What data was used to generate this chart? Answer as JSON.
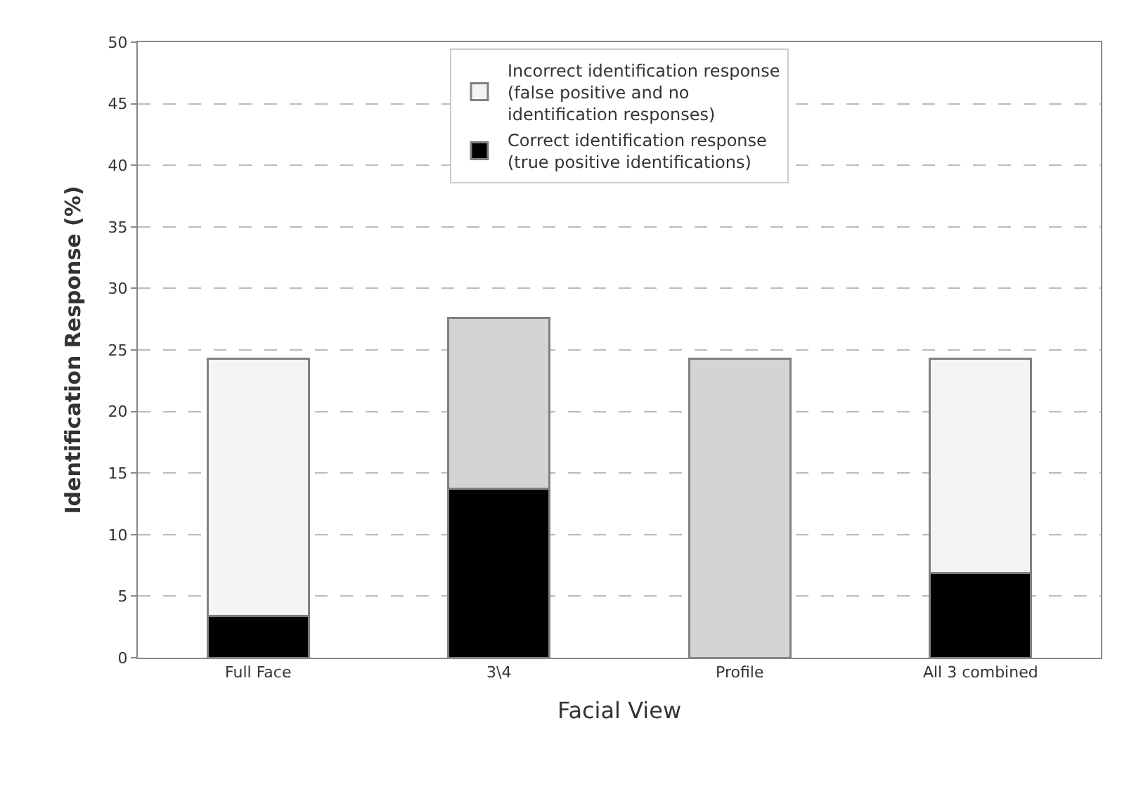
{
  "chart_data": {
    "type": "bar",
    "stacked": true,
    "xlabel": "Facial View",
    "ylabel": "Identification Response (%)",
    "categories": [
      "Full Face",
      "3\\4",
      "Profile",
      "All 3 combined"
    ],
    "series": [
      {
        "name": "Correct identification response\n(true positive identifications)",
        "color": "#000000",
        "values": [
          3.4,
          13.7,
          0,
          6.9
        ]
      },
      {
        "name": "Incorrect identification response\n(false positive and no\nidentification responses)",
        "color": "#f4f4f4",
        "colors": [
          "#f4f4f4",
          "#d4d4d4",
          "#d4d4d4",
          "#f4f4f4"
        ],
        "values": [
          20.9,
          13.9,
          24.3,
          17.4
        ]
      }
    ],
    "ylim": [
      0,
      50
    ],
    "yticks": [
      0,
      5,
      10,
      15,
      20,
      25,
      30,
      35,
      40,
      45,
      50
    ],
    "grid": "y",
    "legend": "top"
  }
}
